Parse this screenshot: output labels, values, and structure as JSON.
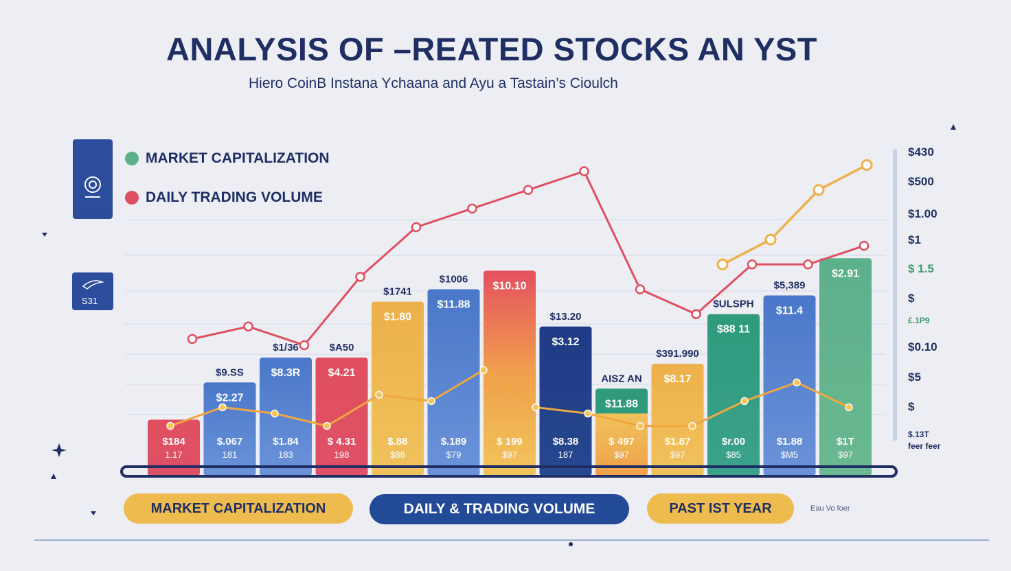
{
  "title": "ANALYSIS OF –REATED STOCKS AN YST",
  "subtitle": "Hiero CoinB Instana Ychaana and Ayu a Tastain’s Cioulch",
  "legend": [
    {
      "label": "MARKET CAPITALIZATION",
      "color": "#5cb08a"
    },
    {
      "label": "DAILY TRADING VOLUME",
      "color": "#e04f5f"
    }
  ],
  "side_card_label": "S31",
  "buttons": {
    "market_cap": "MARKET CAPITALIZATION",
    "daily_volume": "DAILY & TRADING VOLUME",
    "past_year": "PAST IST YEAR"
  },
  "foot_note": "Eau Vo foer",
  "colors": {
    "navy": "#1f2f64",
    "red": "#e04f5f",
    "orange": "#e9ac45",
    "blue": "#4a77c9",
    "green": "#5cb08a",
    "teal": "#2f9a7c"
  },
  "chart_data": {
    "type": "bar",
    "right_axis_ticks": [
      "$430",
      "$500",
      "$1.00",
      "$1",
      "$ 1.5",
      "$",
      "£.1P9",
      "$0.10",
      "$5",
      "$",
      "$.13T",
      "feer feer"
    ],
    "bars": [
      {
        "value": 9,
        "color": "red",
        "top_label": "",
        "inner_label": "",
        "base_label": "$184",
        "base_sub": "1.17"
      },
      {
        "value": 15,
        "color": "blue",
        "top_label": "$9.SS",
        "inner_label": "$2.27",
        "base_label": "$.067",
        "base_sub": "181"
      },
      {
        "value": 19,
        "color": "blue",
        "top_label": "$1/36",
        "inner_label": "$8.3R",
        "base_label": "$1.84",
        "base_sub": "183"
      },
      {
        "value": 19,
        "color": "red",
        "top_label": "$A50",
        "inner_label": "$4.21",
        "base_label": "$ 4.31",
        "base_sub": "198"
      },
      {
        "value": 28,
        "color": "orange",
        "top_label": "$1741",
        "inner_label": "$1.80",
        "base_label": "$.88",
        "base_sub": "$88"
      },
      {
        "value": 30,
        "color": "blue",
        "top_label": "$1006",
        "inner_label": "$11.88",
        "base_label": "$.189",
        "base_sub": "$79"
      },
      {
        "value": 33,
        "color": "redorange",
        "top_label": "",
        "inner_label": "$10.10",
        "base_label": "$ 199",
        "base_sub": "$97"
      },
      {
        "value": 24,
        "color": "navy",
        "top_label": "$13.20",
        "inner_label": "$3.12",
        "base_label": "$8.38",
        "base_sub": "187"
      },
      {
        "value": 14,
        "color": "tealorange",
        "top_label": "AISZ AN",
        "inner_label": "$11.88",
        "base_label": "$ 497",
        "base_sub": "$97"
      },
      {
        "value": 18,
        "color": "orange",
        "top_label": "$391.990",
        "inner_label": "$8.17",
        "base_label": "$1.87",
        "base_sub": "$97"
      },
      {
        "value": 26,
        "color": "teal",
        "top_label": "$ULSPH",
        "inner_label": "$88 11",
        "base_label": "$r.00",
        "base_sub": "$85"
      },
      {
        "value": 29,
        "color": "blue",
        "top_label": "$5,389",
        "inner_label": "$11.4",
        "base_label": "$1.88",
        "base_sub": "$M5"
      },
      {
        "value": 35,
        "color": "green",
        "top_label": "",
        "inner_label": "$2.91",
        "base_label": "$1T",
        "base_sub": "$97"
      }
    ],
    "red_line": [
      22,
      24,
      21,
      32,
      40,
      43,
      46,
      49,
      30,
      26,
      34,
      34,
      37
    ],
    "upper_orange_line": [
      34,
      38,
      46,
      50
    ],
    "lower_orange_line": [
      8,
      11,
      10,
      8,
      13,
      12,
      17,
      11,
      10,
      8,
      8,
      12,
      15,
      11
    ],
    "ylim": [
      0,
      60
    ]
  }
}
